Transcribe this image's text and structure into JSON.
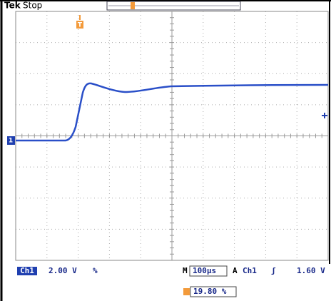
{
  "header": {
    "brand": "Tek",
    "status": "Stop"
  },
  "markers": {
    "trigger": "T",
    "ground": "1"
  },
  "footer": {
    "channel": "Ch1",
    "scale": "2.00 V",
    "coupling": "%",
    "time_label": "M",
    "timebase": "100µs",
    "trigger_mode": "A",
    "trigger_source": "Ch1",
    "trigger_slope": "ʃ",
    "trigger_level": "1.60 V",
    "position": "19.80 %"
  }
}
